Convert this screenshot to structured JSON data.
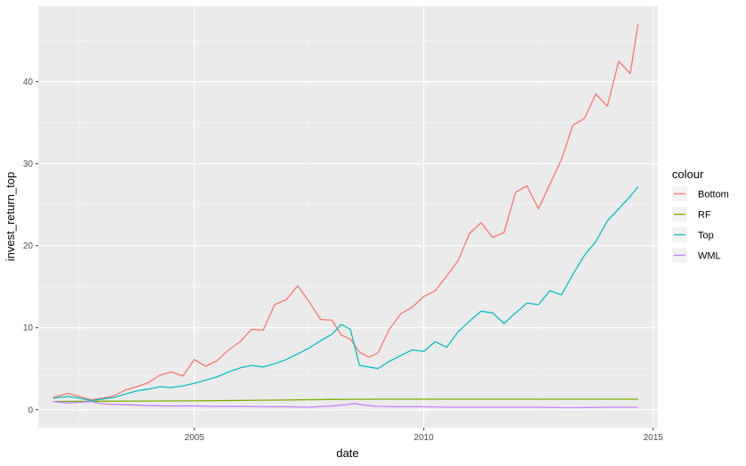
{
  "chart_data": {
    "type": "line",
    "xlabel": "date",
    "ylabel": "invest_return_top",
    "xlim": [
      2001.6,
      2015.1
    ],
    "ylim": [
      -2.2,
      49.2
    ],
    "x_ticks": [
      2005,
      2010,
      2015
    ],
    "x_tick_labels": [
      "2005",
      "2010",
      "2015"
    ],
    "y_ticks": [
      0,
      10,
      20,
      30,
      40
    ],
    "y_tick_labels": [
      "0",
      "10",
      "20",
      "30",
      "40"
    ],
    "grid": true,
    "legend_title": "colour",
    "legend_position": "right",
    "series": [
      {
        "name": "Bottom",
        "color": "#F8766D",
        "x": [
          2001.92,
          2002.25,
          2002.5,
          2002.75,
          2003.0,
          2003.25,
          2003.5,
          2003.75,
          2004.0,
          2004.25,
          2004.5,
          2004.75,
          2005.0,
          2005.25,
          2005.5,
          2005.75,
          2006.0,
          2006.25,
          2006.5,
          2006.75,
          2007.0,
          2007.25,
          2007.5,
          2007.75,
          2008.0,
          2008.2,
          2008.4,
          2008.6,
          2008.8,
          2009.0,
          2009.25,
          2009.5,
          2009.75,
          2010.0,
          2010.25,
          2010.5,
          2010.75,
          2011.0,
          2011.25,
          2011.5,
          2011.75,
          2012.0,
          2012.25,
          2012.5,
          2012.75,
          2013.0,
          2013.25,
          2013.5,
          2013.75,
          2014.0,
          2014.25,
          2014.5,
          2014.67
        ],
        "y": [
          1.5,
          2.0,
          1.6,
          1.2,
          1.4,
          1.7,
          2.4,
          2.8,
          3.3,
          4.2,
          4.6,
          4.1,
          6.1,
          5.3,
          6.0,
          7.3,
          8.3,
          9.8,
          9.7,
          12.8,
          13.4,
          15.1,
          13.2,
          11.0,
          10.9,
          9.1,
          8.6,
          7.0,
          6.4,
          6.9,
          9.8,
          11.7,
          12.5,
          13.8,
          14.5,
          16.3,
          18.2,
          21.5,
          22.8,
          21.0,
          21.6,
          26.5,
          27.3,
          24.5,
          27.5,
          30.5,
          34.7,
          35.5,
          38.5,
          37.0,
          42.5,
          41.0,
          47.0
        ]
      },
      {
        "name": "RF",
        "color": "#7CAE00",
        "x": [
          2001.92,
          2003.0,
          2004.0,
          2005.0,
          2006.0,
          2007.0,
          2008.0,
          2009.0,
          2010.0,
          2011.0,
          2012.0,
          2013.0,
          2014.0,
          2014.67
        ],
        "y": [
          1.0,
          1.03,
          1.05,
          1.07,
          1.12,
          1.18,
          1.25,
          1.28,
          1.28,
          1.28,
          1.28,
          1.28,
          1.28,
          1.28
        ]
      },
      {
        "name": "Top",
        "color": "#00BFC4",
        "x": [
          2001.92,
          2002.25,
          2002.5,
          2002.75,
          2003.0,
          2003.25,
          2003.5,
          2003.75,
          2004.0,
          2004.25,
          2004.5,
          2004.75,
          2005.0,
          2005.25,
          2005.5,
          2005.75,
          2006.0,
          2006.25,
          2006.5,
          2006.75,
          2007.0,
          2007.25,
          2007.5,
          2007.75,
          2008.0,
          2008.2,
          2008.4,
          2008.6,
          2008.8,
          2009.0,
          2009.25,
          2009.5,
          2009.75,
          2010.0,
          2010.25,
          2010.5,
          2010.75,
          2011.0,
          2011.25,
          2011.5,
          2011.75,
          2012.0,
          2012.25,
          2012.5,
          2012.75,
          2013.0,
          2013.25,
          2013.5,
          2013.75,
          2014.0,
          2014.25,
          2014.5,
          2014.67
        ],
        "y": [
          1.4,
          1.6,
          1.4,
          1.1,
          1.3,
          1.5,
          1.9,
          2.3,
          2.5,
          2.8,
          2.7,
          2.9,
          3.2,
          3.6,
          4.0,
          4.6,
          5.1,
          5.4,
          5.2,
          5.6,
          6.1,
          6.8,
          7.5,
          8.4,
          9.2,
          10.4,
          9.8,
          5.4,
          5.2,
          5.0,
          5.9,
          6.6,
          7.3,
          7.1,
          8.3,
          7.6,
          9.5,
          10.8,
          12.0,
          11.8,
          10.5,
          11.8,
          13.0,
          12.8,
          14.5,
          14.0,
          16.5,
          18.8,
          20.5,
          23.0,
          24.5,
          26.0,
          27.2
        ]
      },
      {
        "name": "WML",
        "color": "#C77CFF",
        "x": [
          2001.92,
          2002.25,
          2002.5,
          2002.75,
          2003.0,
          2003.5,
          2004.0,
          2004.5,
          2005.0,
          2005.5,
          2006.0,
          2006.5,
          2007.0,
          2007.5,
          2008.0,
          2008.3,
          2008.5,
          2008.7,
          2009.0,
          2009.5,
          2010.0,
          2010.5,
          2011.0,
          2011.5,
          2012.0,
          2012.5,
          2013.0,
          2013.5,
          2014.0,
          2014.67
        ],
        "y": [
          1.0,
          0.8,
          0.9,
          1.0,
          0.7,
          0.6,
          0.5,
          0.45,
          0.45,
          0.4,
          0.4,
          0.35,
          0.35,
          0.3,
          0.45,
          0.6,
          0.75,
          0.55,
          0.4,
          0.35,
          0.35,
          0.3,
          0.3,
          0.3,
          0.3,
          0.3,
          0.25,
          0.25,
          0.3,
          0.3
        ]
      }
    ]
  }
}
